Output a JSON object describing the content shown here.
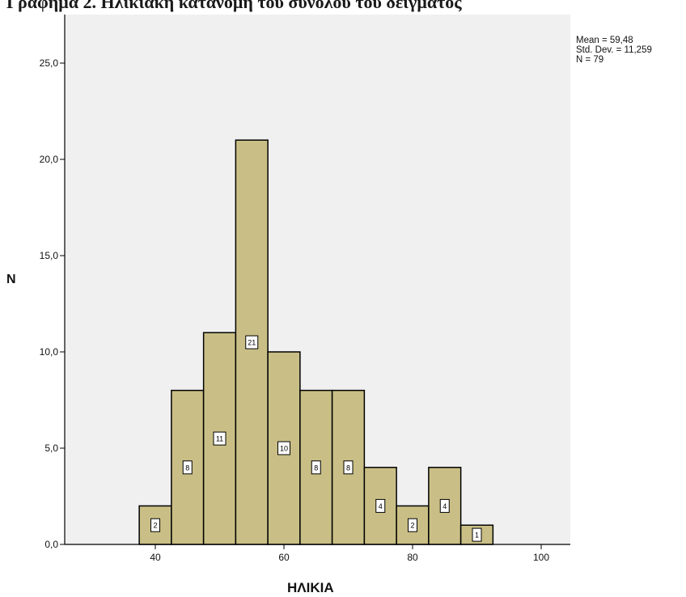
{
  "chart_data": {
    "type": "bar",
    "title": "Γράφημα 2. Ηλικιακή κατανομή του συνόλου του δείγματος",
    "xlabel": "ΗΛΙΚΙΑ",
    "ylabel": "N",
    "xlim": [
      30,
      105
    ],
    "ylim": [
      0,
      27
    ],
    "x_ticks": [
      "40",
      "60",
      "80",
      "100"
    ],
    "x_tick_values": [
      40,
      60,
      80,
      100
    ],
    "y_ticks": [
      "0,0",
      "5,0",
      "10,0",
      "15,0",
      "20,0",
      "25,0"
    ],
    "y_tick_values": [
      0,
      5,
      10,
      15,
      20,
      25
    ],
    "bin_width": 5,
    "bins": [
      {
        "start": 37.5,
        "end": 42.5,
        "value": 2,
        "label": "2"
      },
      {
        "start": 42.5,
        "end": 47.5,
        "value": 8,
        "label": "8"
      },
      {
        "start": 47.5,
        "end": 52.5,
        "value": 11,
        "label": "11"
      },
      {
        "start": 52.5,
        "end": 57.5,
        "value": 21,
        "label": "21"
      },
      {
        "start": 57.5,
        "end": 62.5,
        "value": 10,
        "label": "10"
      },
      {
        "start": 62.5,
        "end": 67.5,
        "value": 8,
        "label": "8"
      },
      {
        "start": 67.5,
        "end": 72.5,
        "value": 8,
        "label": "8"
      },
      {
        "start": 72.5,
        "end": 77.5,
        "value": 4,
        "label": "4"
      },
      {
        "start": 77.5,
        "end": 82.5,
        "value": 2,
        "label": "2"
      },
      {
        "start": 82.5,
        "end": 87.5,
        "value": 4,
        "label": "4"
      },
      {
        "start": 87.5,
        "end": 92.5,
        "value": 1,
        "label": "1"
      }
    ],
    "stats": {
      "mean": "Mean = 59,48",
      "std": "Std. Dev. = 11,259",
      "n": "N = 79"
    },
    "colors": {
      "bar_fill": "#c9bf86",
      "bar_stroke": "#000000",
      "plot_bg": "#f0f0f0"
    },
    "grid": false
  }
}
